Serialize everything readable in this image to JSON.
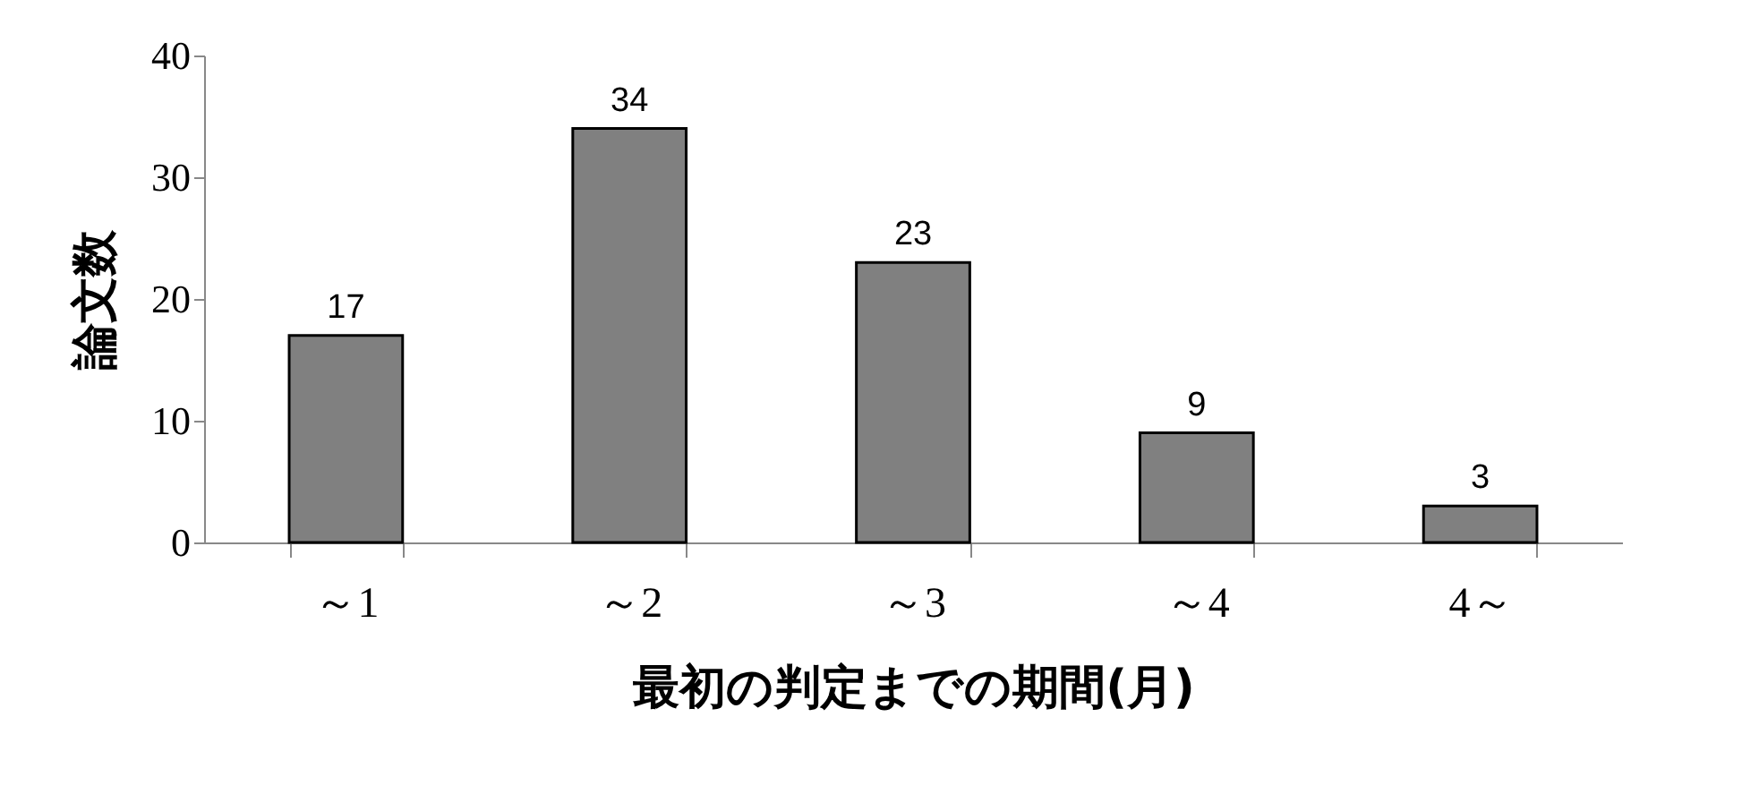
{
  "chart_data": {
    "type": "bar",
    "xlabel": "最初の判定までの期間(月)",
    "ylabel": "論文数",
    "categories": [
      "～1",
      "～2",
      "～3",
      "～4",
      "4～"
    ],
    "values": [
      17,
      34,
      23,
      9,
      3
    ],
    "color": "#808080",
    "ylim": [
      0,
      40
    ],
    "yticks": [
      0,
      10,
      20,
      30,
      40
    ],
    "grid": false,
    "data_labels": true
  }
}
